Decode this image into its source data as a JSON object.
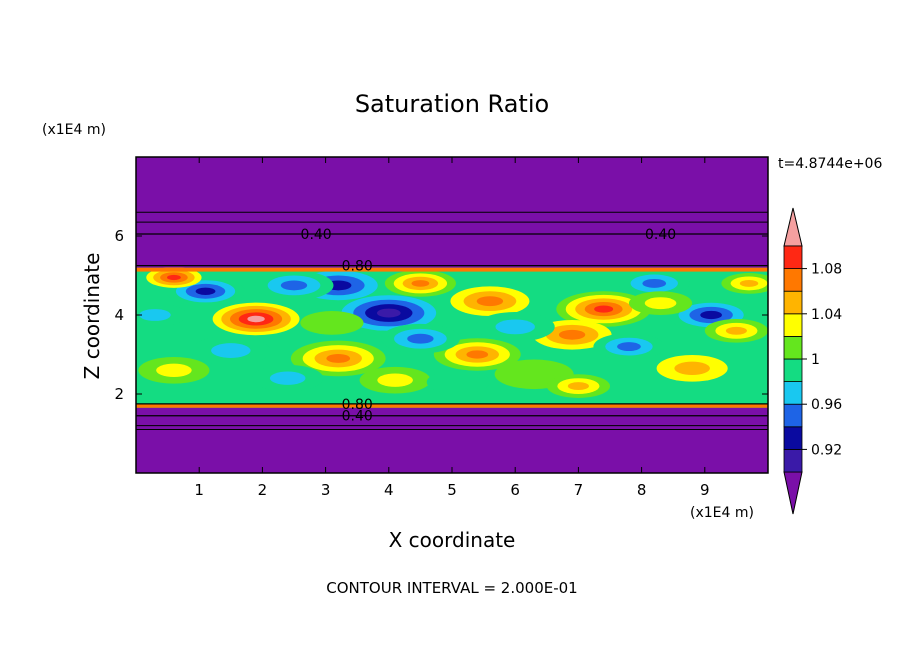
{
  "chart_data": {
    "type": "heatmap",
    "title": "Saturation Ratio",
    "xlabel": "X coordinate",
    "ylabel": "Z coordinate",
    "x_unit": "(x1E4 m)",
    "y_unit": "(x1E4 m)",
    "time_label": "t=4.8744e+06",
    "footer": "CONTOUR INTERVAL = 2.000E-01",
    "xlim": [
      0,
      10
    ],
    "ylim": [
      0,
      8
    ],
    "x_ticks": [
      "1",
      "2",
      "3",
      "4",
      "5",
      "6",
      "7",
      "8",
      "9"
    ],
    "y_ticks": [
      "2",
      "4",
      "6"
    ],
    "colorbar": {
      "labels": [
        "0.92",
        "0.96",
        "1",
        "1.04",
        "1.08"
      ],
      "levels": [
        0.9,
        0.92,
        0.94,
        0.96,
        0.98,
        1.0,
        1.02,
        1.04,
        1.06,
        1.08,
        1.1
      ],
      "colors": [
        "#7a0fa8",
        "#3a1aa8",
        "#0a0aa0",
        "#1e64e6",
        "#19c8f0",
        "#14dc82",
        "#64e61e",
        "#ffff00",
        "#ffb400",
        "#ff7800",
        "#ff2814",
        "#f5a0a0"
      ]
    },
    "contour_lines": [
      {
        "label": "0.40",
        "z": 6.05,
        "positions": [
          2.85,
          8.3
        ]
      },
      {
        "label": "0.80",
        "z": 5.25,
        "positions": [
          3.5
        ]
      },
      {
        "label": "0.80",
        "z": 1.75,
        "positions": [
          3.5
        ]
      },
      {
        "label": "0.40",
        "z": 1.45,
        "positions": [
          3.5
        ]
      }
    ],
    "field_band_z": [
      1.65,
      5.2
    ],
    "blobs": [
      {
        "x": 1.9,
        "z": 3.9,
        "r": 0.55,
        "v": 1.1
      },
      {
        "x": 7.4,
        "z": 4.15,
        "r": 0.6,
        "v": 1.09
      },
      {
        "x": 4.0,
        "z": 4.05,
        "r": 0.6,
        "v": 0.91
      },
      {
        "x": 1.1,
        "z": 4.6,
        "r": 0.5,
        "v": 0.92
      },
      {
        "x": 9.1,
        "z": 4.0,
        "r": 0.55,
        "v": 0.92
      },
      {
        "x": 5.6,
        "z": 4.35,
        "r": 0.5,
        "v": 1.06
      },
      {
        "x": 3.2,
        "z": 4.75,
        "r": 0.5,
        "v": 0.93
      },
      {
        "x": 4.5,
        "z": 4.8,
        "r": 0.45,
        "v": 1.07
      },
      {
        "x": 2.5,
        "z": 4.75,
        "r": 0.5,
        "v": 0.95
      },
      {
        "x": 8.2,
        "z": 4.8,
        "r": 0.45,
        "v": 0.94
      },
      {
        "x": 3.2,
        "z": 2.9,
        "r": 0.6,
        "v": 1.07
      },
      {
        "x": 5.4,
        "z": 3.0,
        "r": 0.55,
        "v": 1.07
      },
      {
        "x": 8.8,
        "z": 2.65,
        "r": 0.45,
        "v": 1.04
      },
      {
        "x": 6.9,
        "z": 3.5,
        "r": 0.5,
        "v": 1.06
      },
      {
        "x": 4.5,
        "z": 3.4,
        "r": 0.5,
        "v": 0.95
      },
      {
        "x": 6.0,
        "z": 3.7,
        "r": 0.5,
        "v": 0.96
      },
      {
        "x": 7.8,
        "z": 3.2,
        "r": 0.45,
        "v": 0.94
      },
      {
        "x": 1.5,
        "z": 3.1,
        "r": 0.5,
        "v": 0.96
      },
      {
        "x": 0.6,
        "z": 2.6,
        "r": 0.45,
        "v": 1.03
      },
      {
        "x": 2.4,
        "z": 2.4,
        "r": 0.45,
        "v": 0.97
      },
      {
        "x": 4.1,
        "z": 2.35,
        "r": 0.45,
        "v": 1.03
      },
      {
        "x": 6.3,
        "z": 2.5,
        "r": 0.5,
        "v": 1.01
      },
      {
        "x": 9.5,
        "z": 3.6,
        "r": 0.4,
        "v": 1.05
      },
      {
        "x": 0.3,
        "z": 4.0,
        "r": 0.4,
        "v": 0.97
      },
      {
        "x": 3.1,
        "z": 3.8,
        "r": 0.4,
        "v": 1.0
      },
      {
        "x": 8.3,
        "z": 4.3,
        "r": 0.4,
        "v": 1.03
      },
      {
        "x": 0.6,
        "z": 4.95,
        "r": 0.35,
        "v": 1.08
      },
      {
        "x": 9.7,
        "z": 4.8,
        "r": 0.35,
        "v": 1.05
      },
      {
        "x": 5.1,
        "z": 2.3,
        "r": 0.4,
        "v": 0.98
      },
      {
        "x": 7.0,
        "z": 2.2,
        "r": 0.4,
        "v": 1.05
      }
    ]
  }
}
